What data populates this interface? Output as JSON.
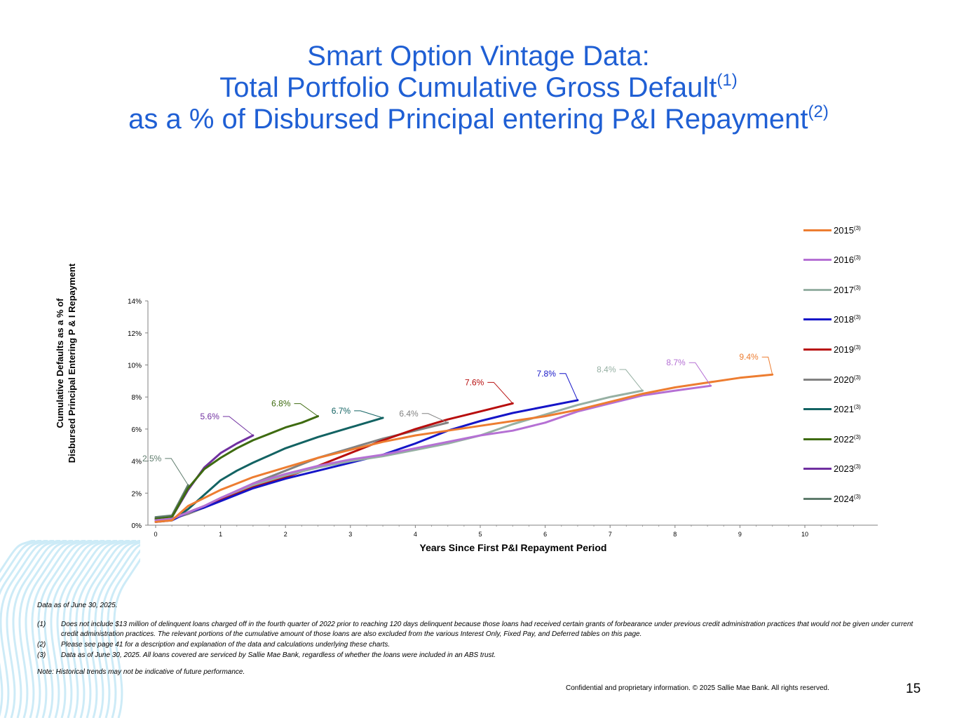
{
  "title": {
    "line1": "Smart Option Vintage Data:",
    "line2": "Total Portfolio Cumulative Gross Default",
    "line2_sup": "(1)",
    "line3": "as a % of Disbursed Principal entering P&I Repayment",
    "line3_sup": "(2)"
  },
  "chart_data": {
    "type": "line",
    "ylabel_line1": "Cumulative Defaults as a % of",
    "ylabel_line2": "Disbursed Principal  Entering P & I Repayment",
    "xlabel": "Years Since First P&I Repayment Period",
    "xlim": [
      0,
      11.25
    ],
    "ylim": [
      0,
      14
    ],
    "x_ticks": [
      0,
      1,
      2,
      3,
      4,
      5,
      6,
      7,
      8,
      9,
      10
    ],
    "y_ticks": [
      "0%",
      "2%",
      "4%",
      "6%",
      "8%",
      "10%",
      "12%",
      "14%"
    ],
    "grid": false,
    "legend_position": "right",
    "series": [
      {
        "name": "2015",
        "sup": "(3)",
        "color": "#ed7d31",
        "end_label": "9.4%",
        "x": [
          0,
          0.25,
          0.5,
          0.75,
          1,
          1.25,
          1.5,
          2,
          2.5,
          3,
          3.5,
          4,
          4.5,
          5,
          5.5,
          6,
          6.5,
          7,
          7.5,
          8,
          8.5,
          9,
          9.5
        ],
        "y": [
          0.2,
          0.3,
          1.2,
          1.7,
          2.2,
          2.6,
          3.0,
          3.6,
          4.2,
          4.7,
          5.2,
          5.6,
          5.9,
          6.2,
          6.5,
          6.8,
          7.2,
          7.7,
          8.2,
          8.6,
          8.9,
          9.2,
          9.4
        ]
      },
      {
        "name": "2016",
        "sup": "(3)",
        "color": "#b570d4",
        "end_label": "8.7%",
        "x": [
          0,
          0.25,
          0.5,
          0.75,
          1,
          1.5,
          2,
          2.5,
          3,
          3.5,
          4,
          4.5,
          5,
          5.5,
          6,
          6.5,
          7,
          7.5,
          8,
          8.55
        ],
        "y": [
          0.3,
          0.4,
          0.8,
          1.2,
          1.7,
          2.6,
          3.2,
          3.7,
          4.1,
          4.4,
          4.8,
          5.2,
          5.6,
          5.9,
          6.4,
          7.1,
          7.6,
          8.1,
          8.4,
          8.7
        ]
      },
      {
        "name": "2017",
        "sup": "(3)",
        "color": "#96b0a3",
        "end_label": "8.4%",
        "x": [
          0,
          0.25,
          0.5,
          0.75,
          1,
          1.5,
          2,
          2.5,
          3,
          3.5,
          4,
          4.5,
          5,
          5.5,
          6,
          6.5,
          7,
          7.5
        ],
        "y": [
          0.3,
          0.4,
          0.8,
          1.2,
          1.7,
          2.5,
          3.1,
          3.6,
          4.0,
          4.3,
          4.7,
          5.1,
          5.6,
          6.3,
          6.9,
          7.5,
          8.0,
          8.4
        ]
      },
      {
        "name": "2018",
        "sup": "(3)",
        "color": "#1515c8",
        "end_label": "7.8%",
        "x": [
          0,
          0.25,
          0.5,
          0.75,
          1,
          1.5,
          2,
          2.5,
          3,
          3.5,
          4,
          4.5,
          5,
          5.5,
          6,
          6.5
        ],
        "y": [
          0.2,
          0.3,
          0.8,
          1.1,
          1.5,
          2.3,
          2.9,
          3.4,
          3.9,
          4.4,
          5.1,
          5.9,
          6.5,
          7.0,
          7.4,
          7.8
        ]
      },
      {
        "name": "2019",
        "sup": "(3)",
        "color": "#b80e0e",
        "end_label": "7.6%",
        "x": [
          0,
          0.25,
          0.5,
          0.75,
          1,
          1.5,
          2,
          2.5,
          3,
          3.5,
          4,
          4.5,
          5,
          5.5
        ],
        "y": [
          0.3,
          0.4,
          0.8,
          1.2,
          1.6,
          2.4,
          3.0,
          3.7,
          4.5,
          5.3,
          6.0,
          6.6,
          7.1,
          7.6
        ]
      },
      {
        "name": "2020",
        "sup": "(3)",
        "color": "#828282",
        "end_label": "6.4%",
        "x": [
          0,
          0.25,
          0.5,
          0.75,
          1,
          1.5,
          2,
          2.5,
          3,
          3.5,
          4,
          4.5
        ],
        "y": [
          0.3,
          0.4,
          0.7,
          1.1,
          1.6,
          2.6,
          3.4,
          4.2,
          4.8,
          5.4,
          5.9,
          6.4
        ]
      },
      {
        "name": "2021",
        "sup": "(3)",
        "color": "#136363",
        "end_label": "6.7%",
        "x": [
          0,
          0.25,
          0.5,
          0.75,
          1,
          1.25,
          1.5,
          2,
          2.5,
          3,
          3.5
        ],
        "y": [
          0.3,
          0.3,
          1.0,
          1.9,
          2.8,
          3.4,
          3.9,
          4.8,
          5.5,
          6.1,
          6.7
        ]
      },
      {
        "name": "2022",
        "sup": "(3)",
        "color": "#3e6b10",
        "end_label": "6.8%",
        "x": [
          0,
          0.25,
          0.5,
          0.75,
          1,
          1.25,
          1.5,
          1.75,
          2,
          2.25,
          2.5
        ],
        "y": [
          0.4,
          0.5,
          2.3,
          3.5,
          4.2,
          4.8,
          5.3,
          5.7,
          6.1,
          6.4,
          6.8
        ]
      },
      {
        "name": "2023",
        "sup": "(3)",
        "color": "#7030a0",
        "end_label": "5.6%",
        "x": [
          0,
          0.25,
          0.5,
          0.75,
          1,
          1.25,
          1.5
        ],
        "y": [
          0.4,
          0.5,
          2.2,
          3.6,
          4.5,
          5.1,
          5.6
        ]
      },
      {
        "name": "2024",
        "sup": "(3)",
        "color": "#5f7c6d",
        "end_label": "2.5%",
        "x": [
          0,
          0.25,
          0.5
        ],
        "y": [
          0.5,
          0.6,
          2.5
        ]
      }
    ]
  },
  "notes": {
    "date": "Data as of June 30, 2025.",
    "n1_mark": "(1)",
    "n1_text": "Does not include $13 million of delinquent loans charged off in the fourth quarter of 2022 prior to reaching 120 days delinquent because those loans had received certain grants of forbearance under previous credit administration practices that would not be given under current credit administration practices. The relevant portions of the cumulative amount of those loans are also excluded from the various Interest Only, Fixed Pay, and Deferred tables on this page.",
    "n2_mark": "(2)",
    "n2_text": "Please see page 41 for a description and explanation of the data and calculations underlying these charts.",
    "n3_mark": "(3)",
    "n3_text": "Data as of  June 30, 2025. All loans covered are serviced by Sallie Mae Bank, regardless of whether the loans were included in an ABS trust.",
    "historical": "Note: Historical trends may not be indicative of future performance."
  },
  "footer": "Confidential and proprietary information. © 2025 Sallie Mae Bank. All rights reserved.",
  "page_number": "15"
}
